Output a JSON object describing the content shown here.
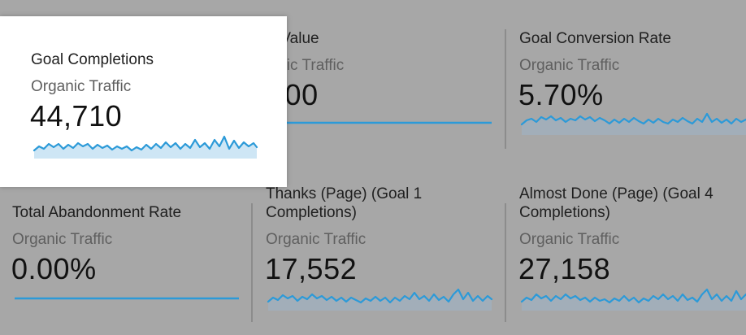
{
  "tiles": [
    {
      "title": "Goal Completions",
      "subtitle": "Organic Traffic",
      "value": "44,710"
    },
    {
      "title": "Goal Value",
      "subtitle": "Organic Traffic",
      "value": "$0.00"
    },
    {
      "title": "Goal Conversion Rate",
      "subtitle": "Organic Traffic",
      "value": "5.70%"
    },
    {
      "title": "Total Abandonment Rate",
      "subtitle": "Organic Traffic",
      "value": "0.00%"
    },
    {
      "title": "Thanks (Page) (Goal 1 Completions)",
      "subtitle": "Organic Traffic",
      "value": "17,552"
    },
    {
      "title": "Almost Done (Page) (Goal 4 Completions)",
      "subtitle": "Organic Traffic",
      "value": "27,158"
    }
  ],
  "colors": {
    "background": "#a7a7a7",
    "highlight": "#ffffff",
    "sparkline": "#2c9ad8",
    "sparkline_fill": "#9fb5c8",
    "divider": "#8c8c8c"
  }
}
